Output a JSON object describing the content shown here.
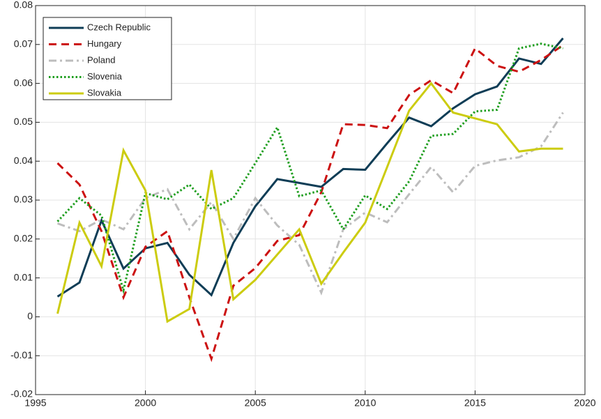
{
  "chart_data": {
    "type": "line",
    "x": [
      1996,
      1997,
      1998,
      1999,
      2000,
      2001,
      2002,
      2003,
      2004,
      2005,
      2006,
      2007,
      2008,
      2009,
      2010,
      2011,
      2012,
      2013,
      2014,
      2015,
      2016,
      2017,
      2018,
      2019
    ],
    "series": [
      {
        "name": "Czech Republic",
        "color": "#0f3d56",
        "style": "solid",
        "values": [
          0.0052,
          0.0088,
          0.0248,
          0.0124,
          0.0176,
          0.019,
          0.0108,
          0.0056,
          0.019,
          0.0284,
          0.0354,
          0.0344,
          0.0334,
          0.038,
          0.0378,
          0.0446,
          0.0512,
          0.049,
          0.0536,
          0.0572,
          0.0592,
          0.0664,
          0.065,
          0.0716
        ]
      },
      {
        "name": "Hungary",
        "color": "#cc1111",
        "style": "dashed",
        "values": [
          0.0395,
          0.034,
          0.022,
          0.005,
          0.018,
          0.022,
          0.005,
          -0.0108,
          0.008,
          0.0125,
          0.0195,
          0.021,
          0.032,
          0.0495,
          0.0493,
          0.0485,
          0.057,
          0.0608,
          0.0575,
          0.069,
          0.0645,
          0.063,
          0.066,
          0.0698
        ]
      },
      {
        "name": "Poland",
        "color": "#bdbdbd",
        "style": "dashdot",
        "values": [
          0.024,
          0.022,
          0.025,
          0.0225,
          0.0305,
          0.0328,
          0.0225,
          0.0295,
          0.02,
          0.0305,
          0.0235,
          0.0185,
          0.0062,
          0.0225,
          0.0268,
          0.0243,
          0.0315,
          0.0385,
          0.032,
          0.0388,
          0.0402,
          0.041,
          0.0438,
          0.0525
        ]
      },
      {
        "name": "Slovenia",
        "color": "#1e9e1e",
        "style": "dotted",
        "values": [
          0.0245,
          0.0305,
          0.026,
          0.0068,
          0.0318,
          0.0302,
          0.034,
          0.0277,
          0.0305,
          0.0395,
          0.0487,
          0.031,
          0.0325,
          0.0225,
          0.0312,
          0.0277,
          0.0348,
          0.0465,
          0.047,
          0.0528,
          0.0532,
          0.069,
          0.0702,
          0.069
        ]
      },
      {
        "name": "Slovakia",
        "color": "#cccc10",
        "style": "solid",
        "values": [
          0.0008,
          0.0242,
          0.013,
          0.0428,
          0.0325,
          -0.0012,
          0.002,
          0.0377,
          0.0045,
          0.0095,
          0.016,
          0.0225,
          0.0085,
          0.0165,
          0.0242,
          0.0385,
          0.053,
          0.06,
          0.0525,
          0.051,
          0.0495,
          0.0425,
          0.0432,
          0.0432
        ]
      }
    ],
    "xlim": [
      1995,
      2020
    ],
    "xticks": [
      1995,
      2000,
      2005,
      2010,
      2015,
      2020
    ],
    "ylim": [
      -0.02,
      0.08
    ],
    "yticks": [
      -0.02,
      -0.01,
      0,
      0.01,
      0.02,
      0.03,
      0.04,
      0.05,
      0.06,
      0.07,
      0.08
    ],
    "grid": true,
    "legend": "upper-left"
  }
}
